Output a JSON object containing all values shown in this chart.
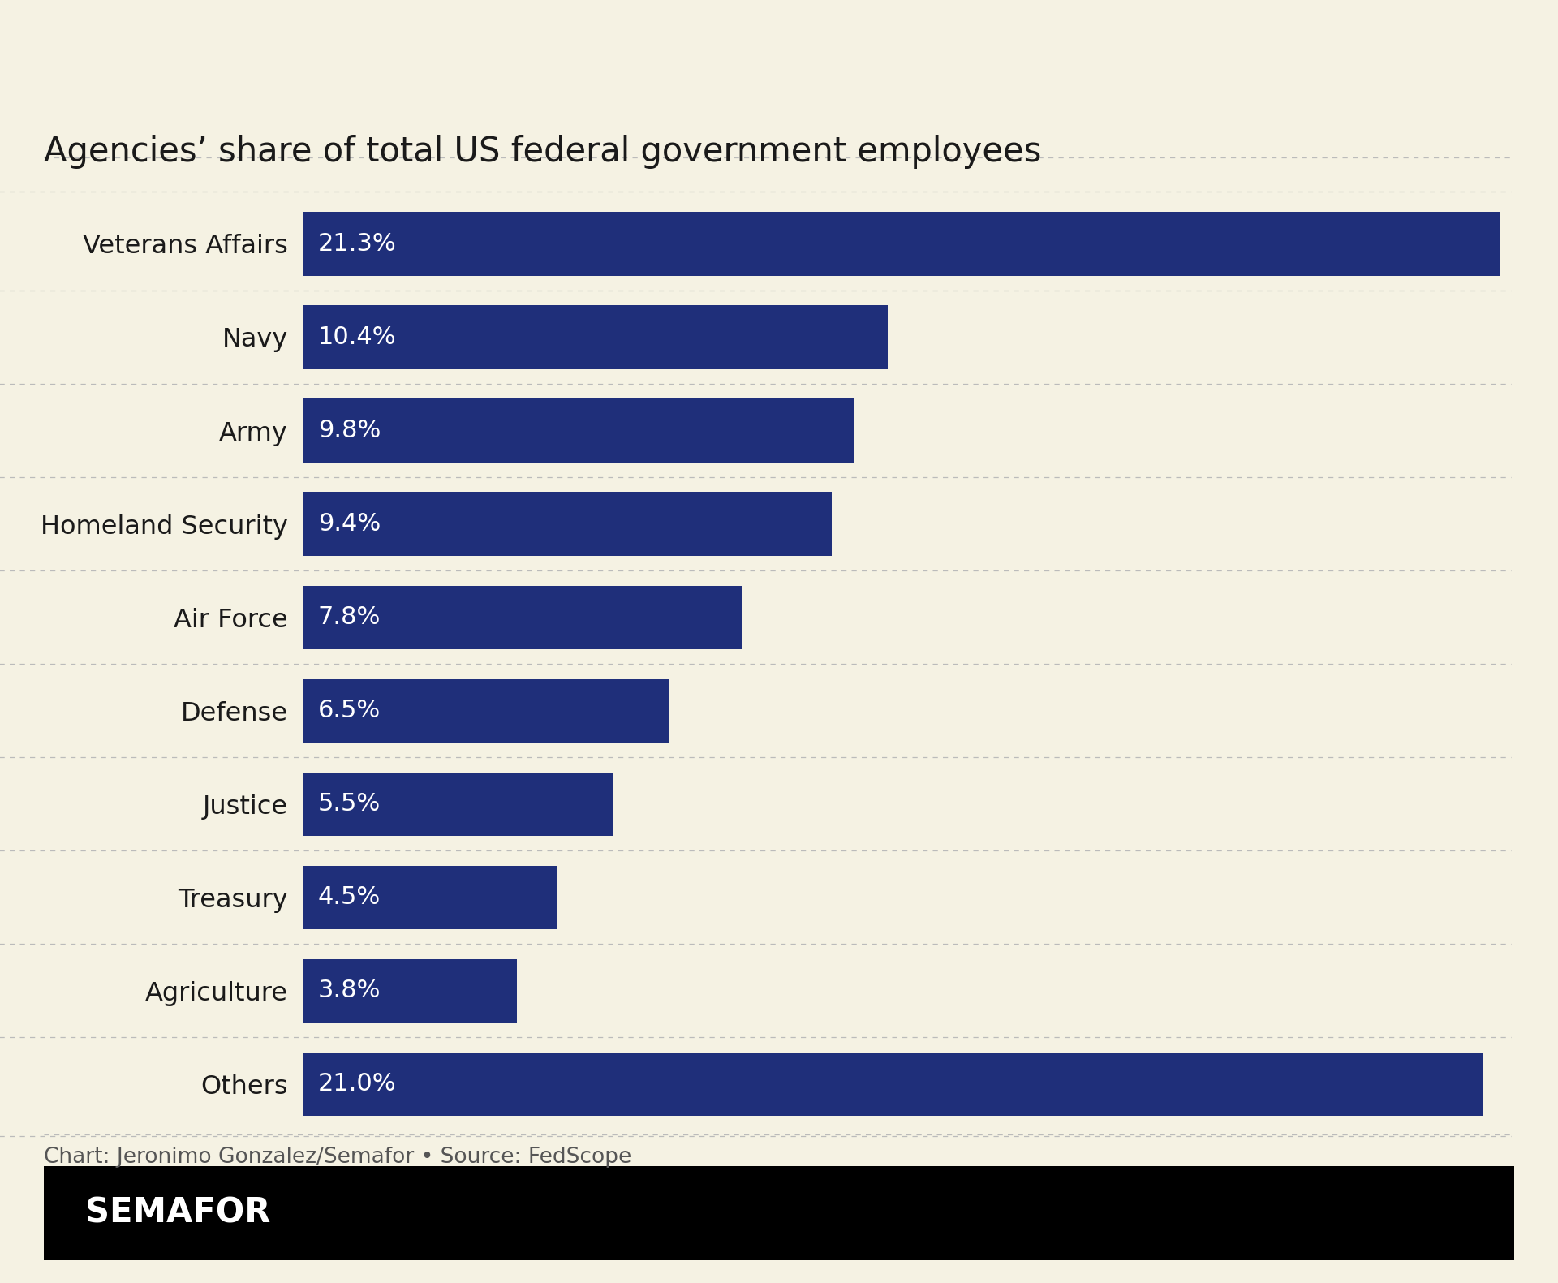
{
  "title": "Agencies’ share of total US federal government employees",
  "categories": [
    "Veterans Affairs",
    "Navy",
    "Army",
    "Homeland Security",
    "Air Force",
    "Defense",
    "Justice",
    "Treasury",
    "Agriculture",
    "Others"
  ],
  "values": [
    21.3,
    10.4,
    9.8,
    9.4,
    7.8,
    6.5,
    5.5,
    4.5,
    3.8,
    21.0
  ],
  "labels": [
    "21.3%",
    "10.4%",
    "9.8%",
    "9.4%",
    "7.8%",
    "6.5%",
    "5.5%",
    "4.5%",
    "3.8%",
    "21.0%"
  ],
  "bar_color": "#1f2f7a",
  "background_color": "#f5f2e3",
  "title_color": "#1a1a1a",
  "label_color": "#ffffff",
  "category_color": "#1a1a1a",
  "footer_text": "Chart: Jeronimo Gonzalez/Semafor • Source: FedScope",
  "semafor_text": "SEMAFOR",
  "semafor_bg": "#000000",
  "semafor_fg": "#ffffff",
  "title_fontsize": 30,
  "category_fontsize": 23,
  "label_fontsize": 22,
  "footer_fontsize": 19,
  "semafor_fontsize": 30,
  "max_value": 21.5,
  "bar_height": 0.68,
  "separator_color": "#bbbbbb",
  "footer_color": "#555555"
}
